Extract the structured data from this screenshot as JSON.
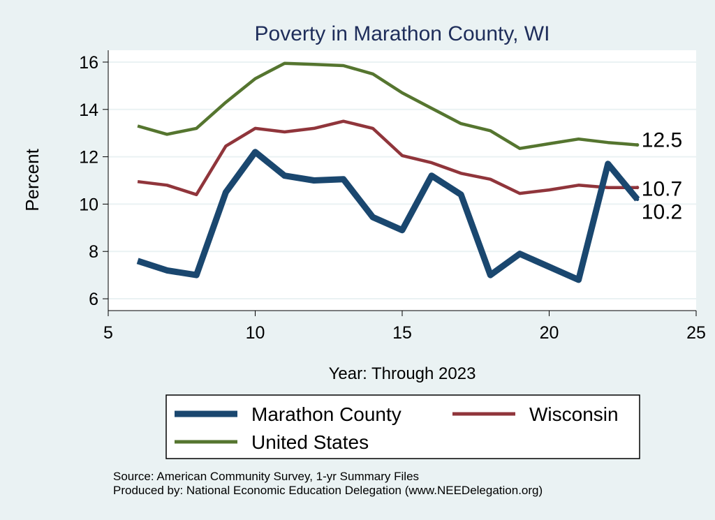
{
  "chart_data": {
    "type": "line",
    "title": "Poverty in Marathon County, WI",
    "xlabel": "Year: Through 2023",
    "ylabel": "Percent",
    "xlim": [
      5,
      25
    ],
    "ylim": [
      5.5,
      16.5
    ],
    "xticks": [
      5,
      10,
      15,
      20,
      25
    ],
    "yticks": [
      6,
      8,
      10,
      12,
      14,
      16
    ],
    "grid": true,
    "legend_position": "bottom",
    "x": [
      6,
      7,
      8,
      9,
      10,
      11,
      12,
      13,
      14,
      15,
      16,
      17,
      18,
      19,
      20,
      21,
      22,
      23
    ],
    "series": [
      {
        "name": "Marathon County",
        "color": "#1a476f",
        "style": "thick",
        "values": [
          7.6,
          7.2,
          7.0,
          10.5,
          12.2,
          11.2,
          11.0,
          11.05,
          9.45,
          8.9,
          11.2,
          10.4,
          7.0,
          7.9,
          7.35,
          6.8,
          11.7,
          10.2
        ],
        "end_label": "10.2"
      },
      {
        "name": "Wisconsin",
        "color": "#90353b",
        "style": "medium",
        "values": [
          10.95,
          10.8,
          10.4,
          12.45,
          13.2,
          13.05,
          13.2,
          13.5,
          13.2,
          12.05,
          11.75,
          11.3,
          11.05,
          10.45,
          10.6,
          10.8,
          10.7,
          10.7
        ],
        "end_label": "10.7"
      },
      {
        "name": "United States",
        "color": "#55752f",
        "style": "medium",
        "values": [
          13.3,
          12.95,
          13.2,
          14.3,
          15.3,
          15.95,
          15.9,
          15.85,
          15.5,
          14.7,
          14.05,
          13.4,
          13.1,
          12.35,
          12.55,
          12.75,
          12.6,
          12.5
        ],
        "end_label": "12.5"
      }
    ]
  },
  "source": {
    "line1": "Source: American Community Survey, 1-yr Summary Files",
    "line2": "Produced by: National Economic Education Delegation (www.NEEDelegation.org)"
  },
  "colors": {
    "background": "#eaf2f3",
    "plot_background": "#ffffff",
    "title": "#1e2d5a",
    "gridline": "#eaf2f3"
  }
}
